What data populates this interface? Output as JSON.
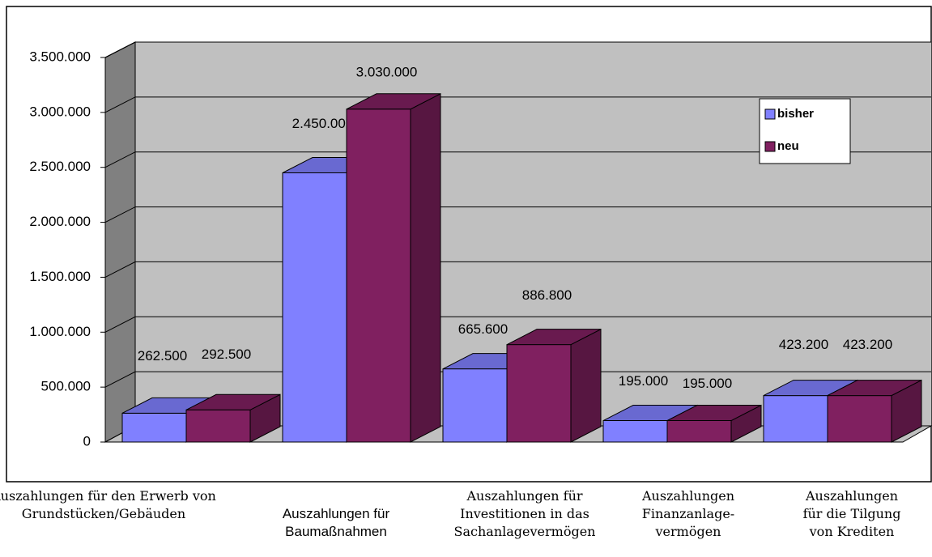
{
  "chart_data": {
    "type": "bar3d",
    "categories": [
      "Auszahlungen für den Erwerb von\nGrundstücken/Gebäuden",
      "Auszahlungen für\nBaumaßnahmen",
      "Auszahlungen für\nInvestitionen in das\nSachanlagevermögen",
      "Auszahlungen\nFinanzanlage-\nvermögen",
      "Auszahlungen\nfür die Tilgung\nvon Krediten"
    ],
    "series": [
      {
        "name": "bisher",
        "color": "#8080ff",
        "values": [
          262500,
          2450000,
          665600,
          195000,
          423200
        ],
        "value_labels": [
          "262.500",
          "2.450.000",
          "665.600",
          "195.000",
          "423.200"
        ]
      },
      {
        "name": "neu",
        "color": "#802060",
        "values": [
          292500,
          3030000,
          886800,
          195000,
          423200
        ],
        "value_labels": [
          "292.500",
          "3.030.000",
          "886.800",
          "195.000",
          "423.200"
        ]
      }
    ],
    "ylim": [
      0,
      3500000
    ],
    "yticks": [
      0,
      {
        "value": 500000,
        "label": "500.000"
      },
      {
        "value": 1000000,
        "label": "1.000.000"
      },
      {
        "value": 1500000,
        "label": "1.500.000"
      },
      {
        "value": 2000000,
        "label": "2.000.000"
      },
      {
        "value": 2500000,
        "label": "2.500.000"
      },
      {
        "value": 3000000,
        "label": "3.000.000"
      },
      {
        "value": 3500000,
        "label": "3.500.000"
      }
    ],
    "grid": true,
    "legend": "upper right"
  }
}
